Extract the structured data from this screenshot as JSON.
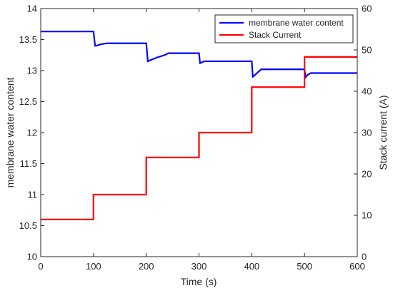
{
  "chart_data": {
    "type": "line",
    "x_axis": {
      "label": "Time (s)",
      "range": [
        0,
        600
      ],
      "ticks": [
        0,
        100,
        200,
        300,
        400,
        500,
        600
      ]
    },
    "y_left": {
      "label": "membrane water content",
      "range": [
        10,
        14
      ],
      "ticks": [
        10,
        10.5,
        11,
        11.5,
        12,
        12.5,
        13,
        13.5,
        14
      ],
      "tick_labels": [
        "10",
        "10.5",
        "11",
        "11.5",
        "12",
        "12.5",
        "13",
        "13.5",
        "14"
      ]
    },
    "y_right": {
      "label": "Stack current (A)",
      "range": [
        0,
        60
      ],
      "ticks": [
        0,
        10,
        20,
        30,
        40,
        50,
        60
      ]
    },
    "grid": false,
    "legend_position": "top-right",
    "series": [
      {
        "name": "membrane water content",
        "axis": "left",
        "color": "#0000ff",
        "points": [
          [
            0,
            13.63
          ],
          [
            100,
            13.63
          ],
          [
            103,
            13.4
          ],
          [
            106,
            13.4
          ],
          [
            112,
            13.42
          ],
          [
            125,
            13.44
          ],
          [
            200,
            13.44
          ],
          [
            203,
            13.15
          ],
          [
            208,
            13.17
          ],
          [
            220,
            13.21
          ],
          [
            235,
            13.25
          ],
          [
            242,
            13.28
          ],
          [
            300,
            13.28
          ],
          [
            302,
            13.12
          ],
          [
            305,
            13.13
          ],
          [
            310,
            13.15
          ],
          [
            400,
            13.15
          ],
          [
            402,
            12.9
          ],
          [
            405,
            12.92
          ],
          [
            410,
            12.96
          ],
          [
            418,
            13.02
          ],
          [
            500,
            13.02
          ],
          [
            502,
            12.89
          ],
          [
            506,
            12.93
          ],
          [
            512,
            12.96
          ],
          [
            600,
            12.96
          ]
        ]
      },
      {
        "name": "Stack Current",
        "axis": "right",
        "color": "#ff0000",
        "points": [
          [
            0,
            9
          ],
          [
            100,
            9
          ],
          [
            100,
            15
          ],
          [
            200,
            15
          ],
          [
            200,
            24
          ],
          [
            300,
            24
          ],
          [
            300,
            30
          ],
          [
            400,
            30
          ],
          [
            400,
            41
          ],
          [
            500,
            41
          ],
          [
            500,
            48.3
          ],
          [
            600,
            48.3
          ]
        ]
      }
    ]
  }
}
